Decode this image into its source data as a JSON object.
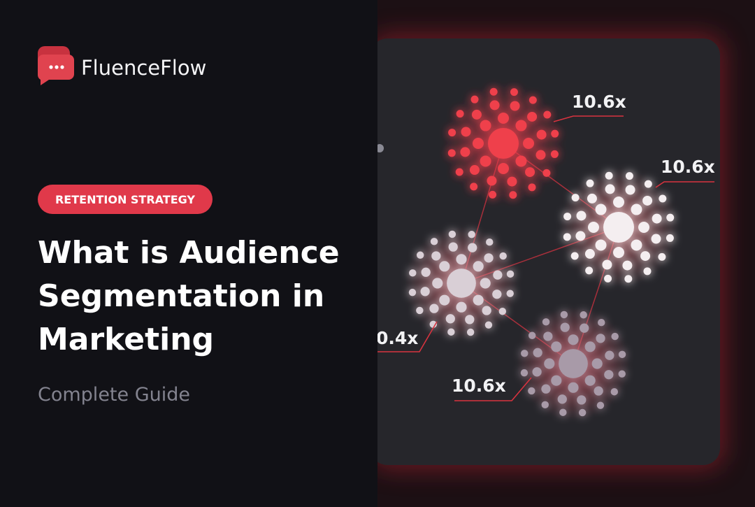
{
  "brand": "FluenceFlow",
  "tag": "RETENTION STRATEGY",
  "title_lines": [
    "What is Audience",
    "Segmentation in",
    "Marketing"
  ],
  "subtitle": "Complete Guide",
  "labels": [
    "10.6x",
    "10.6x",
    "0.4x",
    "10.6x"
  ]
}
